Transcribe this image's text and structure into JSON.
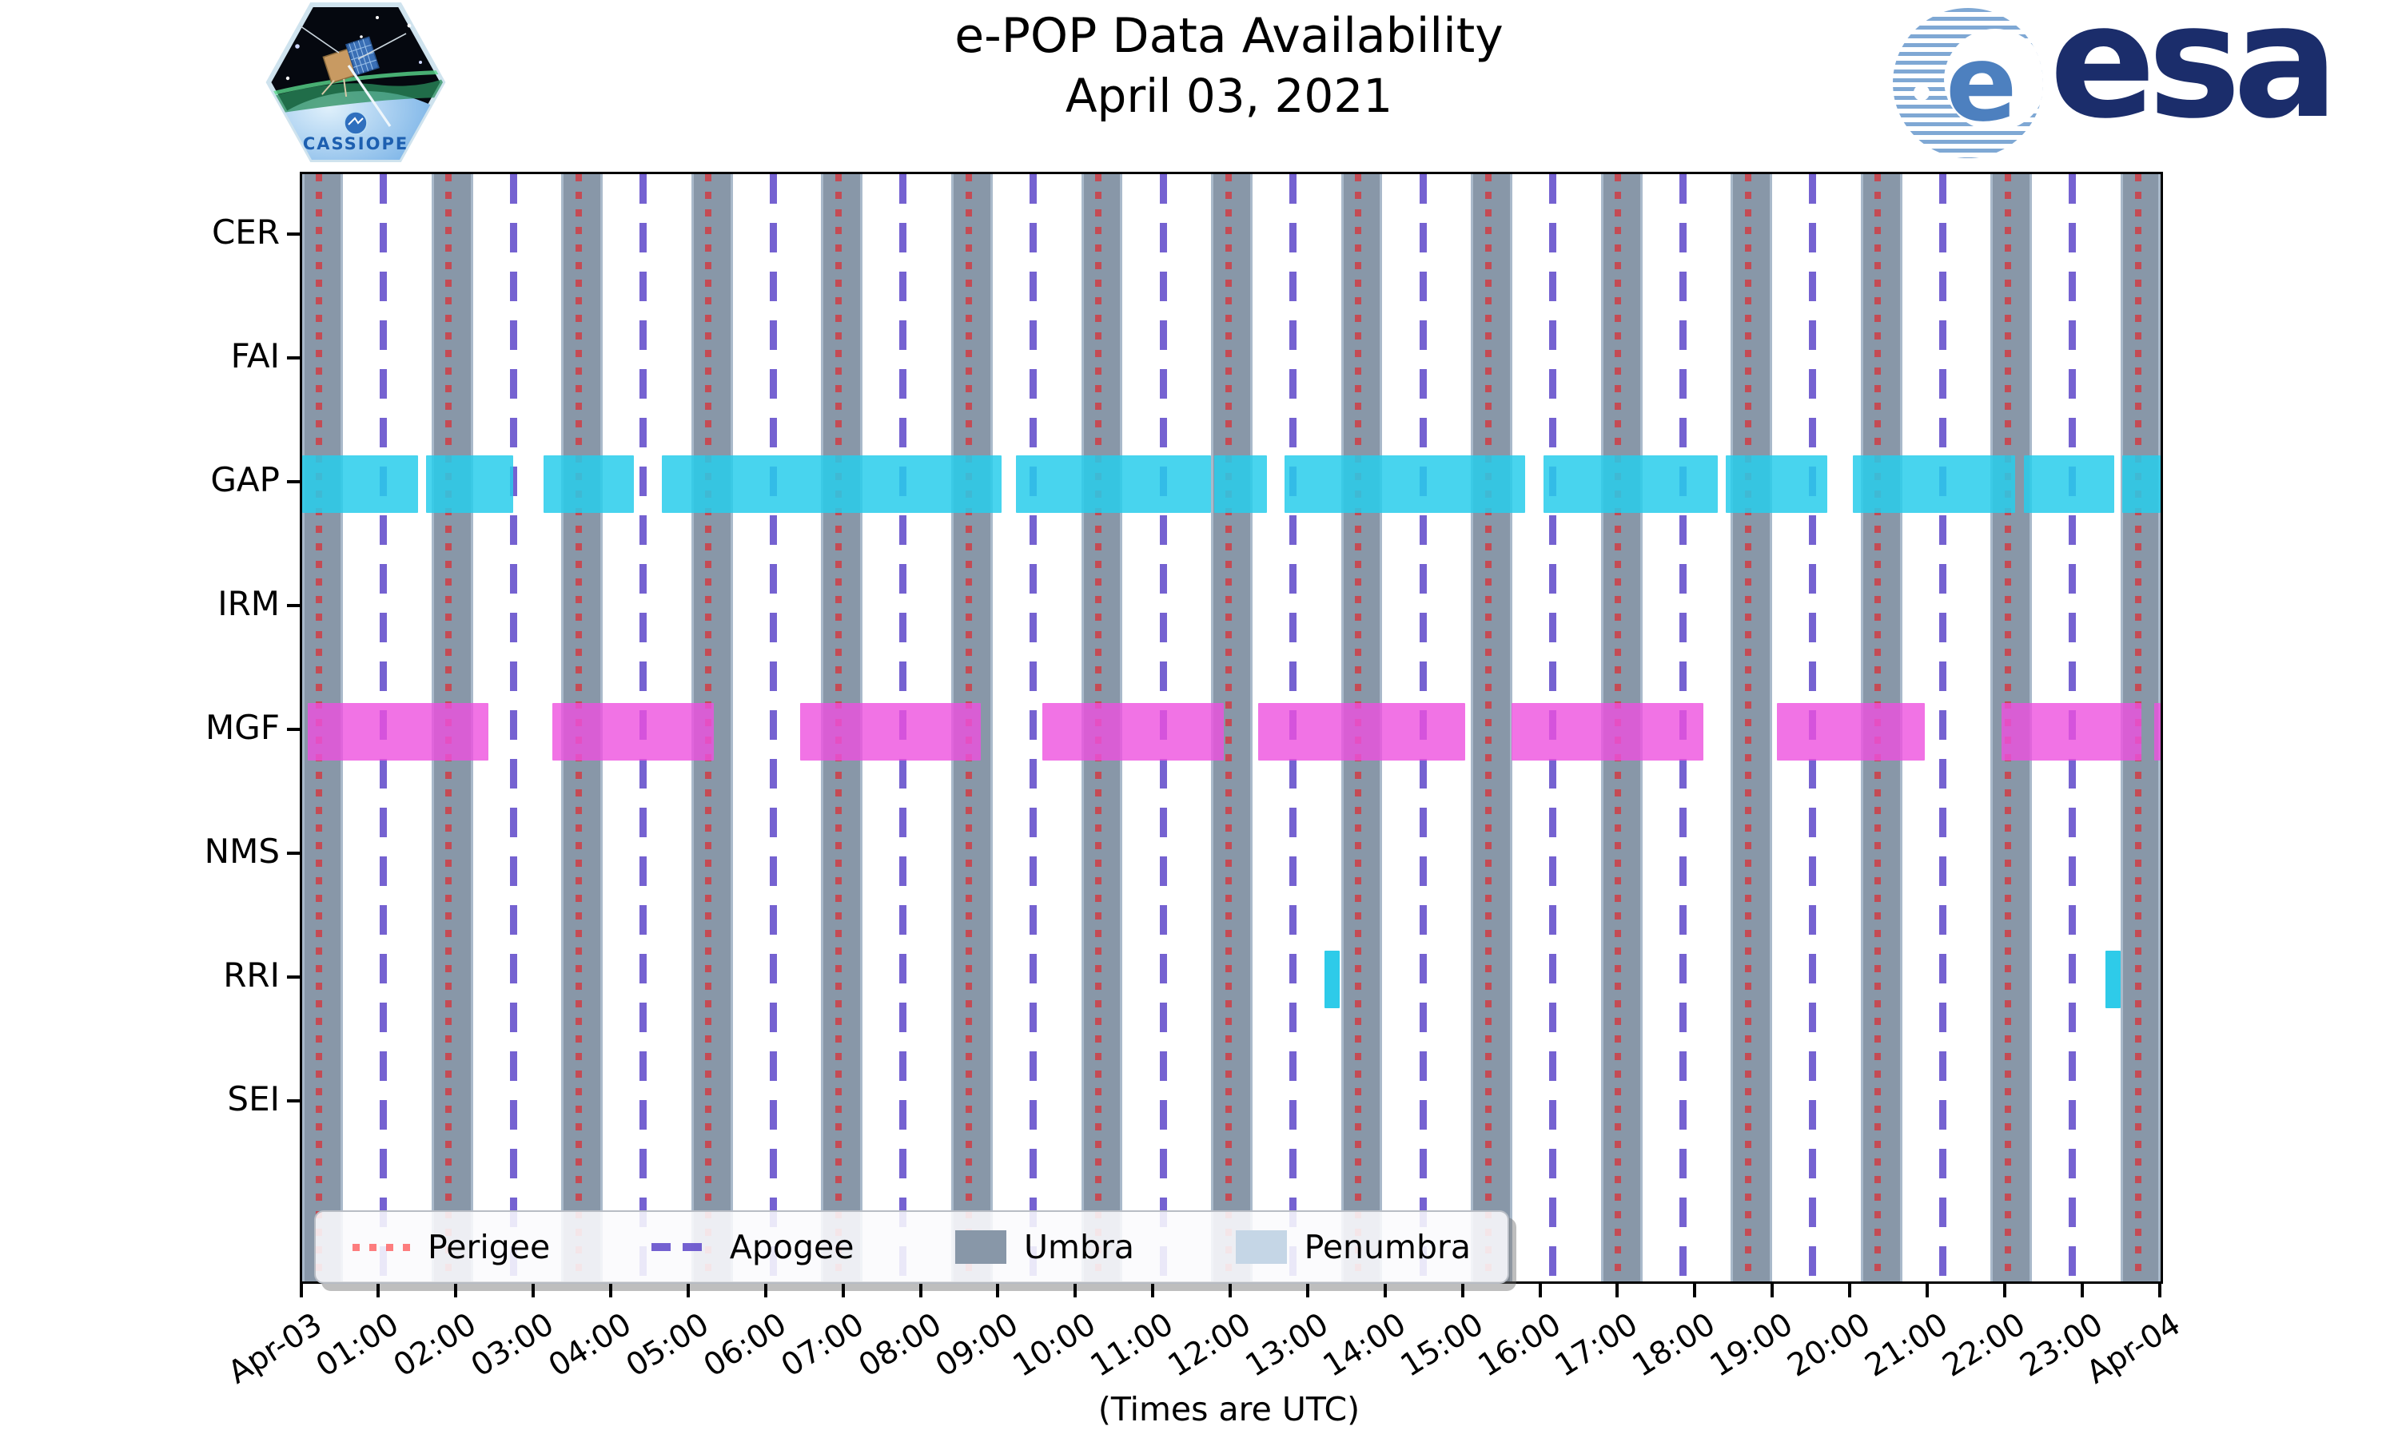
{
  "header": {
    "title_line1": "e-POP Data Availability",
    "title_line2": "April 03, 2021",
    "cassiope_label": "CASSIOPE",
    "esa_label": "esa"
  },
  "axis": {
    "xlabel": "(Times are UTC)",
    "x_ticks": [
      "Apr-03",
      "01:00",
      "02:00",
      "03:00",
      "04:00",
      "05:00",
      "06:00",
      "07:00",
      "08:00",
      "09:00",
      "10:00",
      "11:00",
      "12:00",
      "13:00",
      "14:00",
      "15:00",
      "16:00",
      "17:00",
      "18:00",
      "19:00",
      "20:00",
      "21:00",
      "22:00",
      "23:00",
      "Apr-04"
    ],
    "instruments": [
      "CER",
      "FAI",
      "GAP",
      "IRM",
      "MGF",
      "NMS",
      "RRI",
      "SEI"
    ]
  },
  "legend": {
    "items": [
      {
        "label": "Perigee",
        "type": "dotted-line",
        "color": "rgba(255,0,0,0.5)"
      },
      {
        "label": "Apogee",
        "type": "dashed-line",
        "color": "rgba(93,70,201,0.85)"
      },
      {
        "label": "Umbra",
        "type": "patch",
        "color": "#8897a8"
      },
      {
        "label": "Penumbra",
        "type": "patch",
        "color": "#c5d6e6"
      }
    ]
  },
  "colors": {
    "figure_bg": "#ffffff",
    "axis_border": "#000000",
    "umbra": "#8897a8",
    "penumbra": "#c5d6e6",
    "perigee": "rgba(255,0,0,0.5)",
    "apogee": "rgba(93,70,201,0.85)",
    "cyan_bar": "rgba(40,205,235,0.85)",
    "magenta_bar": "rgba(238,80,222,0.8)",
    "esa_text": "#1b2d6b",
    "esa_stripe": "#7fa8d4",
    "cassiope_text": "#1d5fb0"
  },
  "chart_data": {
    "type": "availability-timeline",
    "title": "e-POP Data Availability",
    "subtitle": "April 03, 2021",
    "x_unit": "hours UTC on 2021-04-03",
    "x_range": [
      0,
      24
    ],
    "x_start_label": "Apr-03",
    "x_end_label": "Apr-04",
    "orbit_period_hours": 1.678,
    "perigee_times": [
      0.214,
      1.892,
      3.57,
      5.248,
      6.926,
      8.604,
      10.282,
      11.96,
      13.638,
      15.316,
      16.994,
      18.672,
      20.35,
      22.028,
      23.706
    ],
    "apogee_times": [
      1.05,
      2.728,
      4.406,
      6.084,
      7.762,
      9.44,
      11.118,
      12.796,
      14.474,
      16.152,
      17.83,
      19.508,
      21.186,
      22.864
    ],
    "umbra_intervals": [
      [
        0.0,
        0.526
      ],
      [
        1.67,
        2.204
      ],
      [
        3.348,
        3.882
      ],
      [
        5.026,
        5.56
      ],
      [
        6.704,
        7.238
      ],
      [
        8.382,
        8.916
      ],
      [
        10.06,
        10.594
      ],
      [
        11.738,
        12.272
      ],
      [
        13.416,
        13.95
      ],
      [
        15.094,
        15.628
      ],
      [
        16.772,
        17.306
      ],
      [
        18.45,
        18.984
      ],
      [
        20.128,
        20.662
      ],
      [
        21.806,
        22.34
      ],
      [
        23.484,
        24.0
      ]
    ],
    "series": [
      {
        "name": "CER",
        "color": "rgba(40,205,235,0.85)",
        "intervals": []
      },
      {
        "name": "FAI",
        "color": "rgba(40,205,235,0.85)",
        "intervals": []
      },
      {
        "name": "GAP",
        "color": "rgba(40,205,235,0.85)",
        "intervals": [
          [
            0.0,
            1.5
          ],
          [
            1.6,
            2.73
          ],
          [
            3.12,
            4.28
          ],
          [
            4.65,
            9.03
          ],
          [
            9.22,
            11.74
          ],
          [
            11.78,
            12.46
          ],
          [
            12.69,
            15.79
          ],
          [
            16.03,
            18.28
          ],
          [
            18.38,
            19.7
          ],
          [
            20.03,
            22.12
          ],
          [
            22.23,
            23.4
          ],
          [
            23.5,
            24.0
          ]
        ]
      },
      {
        "name": "IRM",
        "color": "rgba(40,205,235,0.85)",
        "intervals": []
      },
      {
        "name": "MGF",
        "color": "rgba(238,80,222,0.8)",
        "intervals": [
          [
            0.07,
            2.41
          ],
          [
            3.23,
            5.32
          ],
          [
            6.43,
            8.76
          ],
          [
            9.56,
            11.9
          ],
          [
            12.35,
            15.02
          ],
          [
            15.62,
            18.1
          ],
          [
            19.05,
            20.95
          ],
          [
            21.95,
            23.75
          ],
          [
            23.92,
            24.0
          ]
        ]
      },
      {
        "name": "NMS",
        "color": "rgba(40,205,235,0.85)",
        "intervals": []
      },
      {
        "name": "RRI",
        "color": "rgba(35,200,232,0.95)",
        "intervals": [
          [
            13.2,
            13.4
          ],
          [
            23.29,
            23.48
          ]
        ]
      },
      {
        "name": "SEI",
        "color": "rgba(40,205,235,0.85)",
        "intervals": []
      }
    ]
  }
}
